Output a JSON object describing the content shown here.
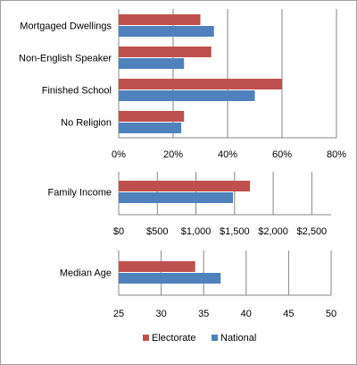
{
  "chart_data": [
    {
      "type": "bar",
      "orientation": "horizontal",
      "categories": [
        "Mortgaged Dwellings",
        "Non-English Speaker",
        "Finished School",
        "No Religion"
      ],
      "series": [
        {
          "name": "Electorate",
          "values": [
            30,
            34,
            60,
            24
          ]
        },
        {
          "name": "National",
          "values": [
            35,
            24,
            50,
            23
          ]
        }
      ],
      "xlim": [
        0,
        80
      ],
      "xticks": [
        "0%",
        "20%",
        "40%",
        "60%",
        "80%"
      ],
      "grid": true
    },
    {
      "type": "bar",
      "orientation": "horizontal",
      "categories": [
        "Family Income"
      ],
      "series": [
        {
          "name": "Electorate",
          "values": [
            1700
          ]
        },
        {
          "name": "National",
          "values": [
            1480
          ]
        }
      ],
      "xlim": [
        0,
        2750
      ],
      "xticks": [
        "$0",
        "$500",
        "$1,000",
        "$1,500",
        "$2,000",
        "$2,500"
      ],
      "grid": true
    },
    {
      "type": "bar",
      "orientation": "horizontal",
      "categories": [
        "Median Age"
      ],
      "series": [
        {
          "name": "Electorate",
          "values": [
            34
          ]
        },
        {
          "name": "National",
          "values": [
            37
          ]
        }
      ],
      "xlim": [
        25,
        50
      ],
      "xticks": [
        "25",
        "30",
        "35",
        "40",
        "45",
        "50"
      ],
      "grid": true
    }
  ],
  "colors": {
    "Electorate": "#c0504d",
    "National": "#4f81bd",
    "grid": "#868686"
  },
  "legend": {
    "position": "bottom",
    "items": [
      "Electorate",
      "National"
    ]
  }
}
